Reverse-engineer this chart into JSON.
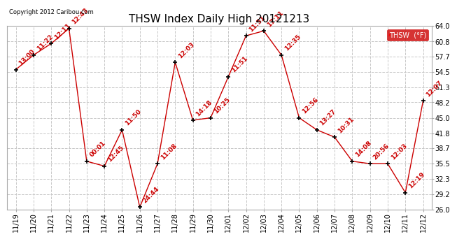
{
  "title": "THSW Index Daily High 20121213",
  "copyright": "Copyright 2012 Caribou.com",
  "legend_label": "THSW  (°F)",
  "background_color": "#ffffff",
  "plot_bg_color": "#ffffff",
  "line_color": "#cc0000",
  "marker_color": "#000000",
  "grid_color": "#c8c8c8",
  "x_labels": [
    "11/19",
    "11/20",
    "11/21",
    "11/22",
    "11/23",
    "11/24",
    "11/25",
    "11/26",
    "11/27",
    "11/28",
    "11/29",
    "11/30",
    "12/01",
    "12/02",
    "12/03",
    "12/04",
    "12/05",
    "12/06",
    "12/07",
    "12/08",
    "12/09",
    "12/10",
    "12/11",
    "12/12"
  ],
  "y_values": [
    55.0,
    58.0,
    60.4,
    63.5,
    36.0,
    35.0,
    42.5,
    26.5,
    35.5,
    56.5,
    44.5,
    45.0,
    53.5,
    62.0,
    63.0,
    58.0,
    45.0,
    42.5,
    41.0,
    36.0,
    35.5,
    35.5,
    29.5,
    48.5
  ],
  "time_labels": [
    "13:00",
    "11:22",
    "12:11",
    "12:43",
    "00:01",
    "12:45",
    "11:50",
    "24:44",
    "11:08",
    "12:03",
    "14:18",
    "10:25",
    "11:51",
    "11:51",
    "17:11",
    "12:35",
    "12:56",
    "13:27",
    "10:31",
    "14:08",
    "20:56",
    "12:03",
    "12:19",
    "12:07"
  ],
  "ylim": [
    26.0,
    64.0
  ],
  "yticks": [
    26.0,
    29.2,
    32.3,
    35.5,
    38.7,
    41.8,
    45.0,
    48.2,
    51.3,
    54.5,
    57.7,
    60.8,
    64.0
  ],
  "title_fontsize": 11,
  "axis_fontsize": 7,
  "label_fontsize": 6.5
}
